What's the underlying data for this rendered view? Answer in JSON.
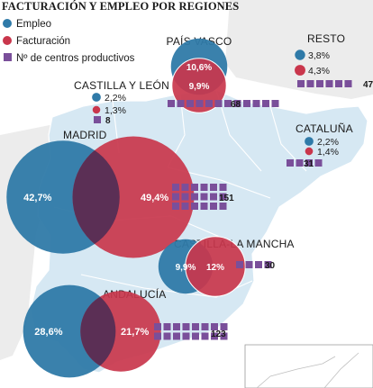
{
  "title": "FACTURACIÓN Y EMPLEO POR REGIONES",
  "colors": {
    "empleo": "#2f7aa8",
    "facturacion": "#c9364c",
    "centros": "#7a4f9a",
    "map_fill": "#d6e8f3",
    "map_stroke": "#ffffff",
    "background_land": "#f1f1f1",
    "overlap": "#5b2f55"
  },
  "chart_data": {
    "type": "bubble",
    "title": "FACTURACIÓN Y EMPLEO POR REGIONES",
    "legend": [
      {
        "key": "empleo",
        "label": "Empleo"
      },
      {
        "key": "facturacion",
        "label": "Facturación"
      },
      {
        "key": "centros",
        "label": "Nº de centros productivos"
      }
    ],
    "legend_position": "top-left",
    "regions": [
      {
        "name": "PAÍS VASCO",
        "empleo": 10.6,
        "facturacion": 9.9,
        "centros": 68,
        "empleo_label": "10,6%",
        "facturacion_label": "9,9%",
        "centros_label": "68"
      },
      {
        "name": "RESTO",
        "empleo": 3.8,
        "facturacion": 4.3,
        "centros": 47,
        "empleo_label": "3,8%",
        "facturacion_label": "4,3%",
        "centros_label": "47"
      },
      {
        "name": "CASTILLA Y LEÓN",
        "empleo": 2.2,
        "facturacion": 1.3,
        "centros": 8,
        "empleo_label": "2,2%",
        "facturacion_label": "1,3%",
        "centros_label": "8"
      },
      {
        "name": "CATALUÑA",
        "empleo": 2.2,
        "facturacion": 1.4,
        "centros": 31,
        "empleo_label": "2,2%",
        "facturacion_label": "1,4%",
        "centros_label": "31"
      },
      {
        "name": "MADRID",
        "empleo": 42.7,
        "facturacion": 49.4,
        "centros": 151,
        "empleo_label": "42,7%",
        "facturacion_label": "49,4%",
        "centros_label": "151"
      },
      {
        "name": "CASTILLA-LA MANCHA",
        "empleo": 9.9,
        "facturacion": 12,
        "centros": 30,
        "empleo_label": "9,9%",
        "facturacion_label": "12%",
        "centros_label": "30"
      },
      {
        "name": "ANDALUCÍA",
        "empleo": 28.6,
        "facturacion": 21.7,
        "centros": 123,
        "empleo_label": "28,6%",
        "facturacion_label": "21,7%",
        "centros_label": "123"
      }
    ]
  }
}
